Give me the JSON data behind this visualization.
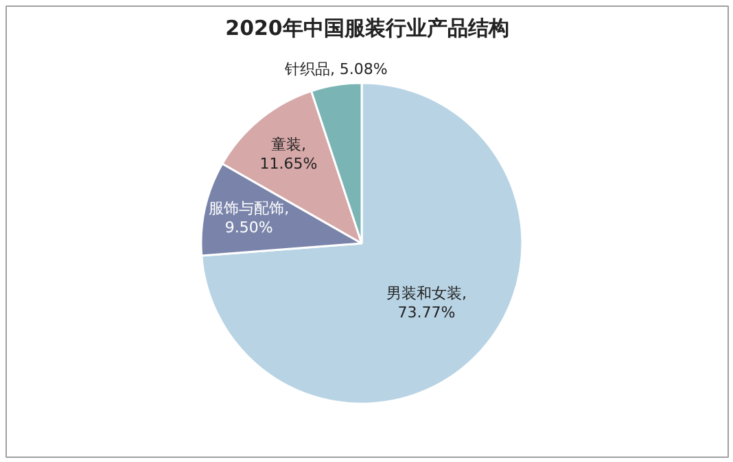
{
  "chart_data": {
    "type": "pie",
    "title": "2020年中国服装行业产品结构",
    "categories": [
      "男装和女装",
      "服饰与配饰",
      "童装",
      "针织品"
    ],
    "values": [
      73.77,
      9.5,
      11.65,
      5.08
    ],
    "colors": [
      "#b8d4e4",
      "#7a84aa",
      "#d6a8a8",
      "#7ab4b4"
    ],
    "value_labels": [
      ", 73.77%",
      ", 9.50%",
      ", 11.65%",
      ", 5.08%"
    ],
    "legend": false
  }
}
